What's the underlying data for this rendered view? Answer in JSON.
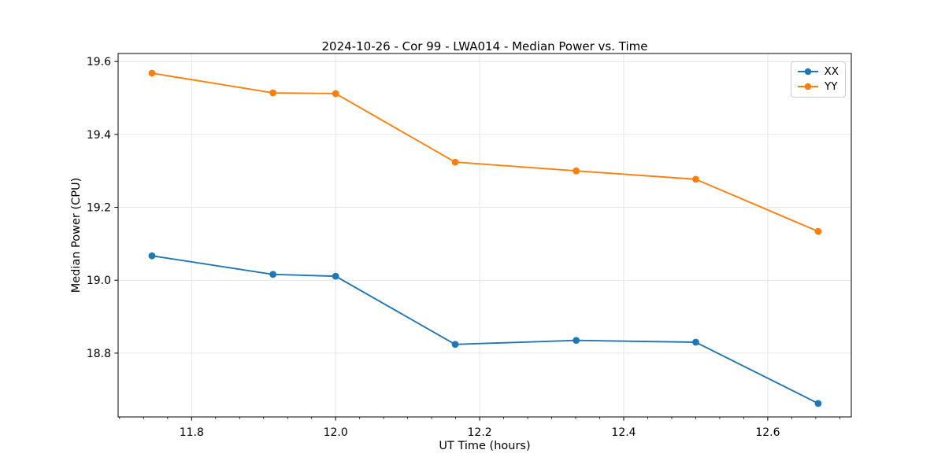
{
  "chart_data": {
    "type": "line",
    "title": "2024-10-26 - Cor 99 - LWA014 - Median Power vs. Time",
    "xlabel": "UT Time (hours)",
    "ylabel": "Median Power (CPU)",
    "x": [
      11.745,
      11.913,
      12.0,
      12.166,
      12.334,
      12.5,
      12.67
    ],
    "series": [
      {
        "name": "XX",
        "color": "#1f77b4",
        "values": [
          19.067,
          19.016,
          19.011,
          18.824,
          18.835,
          18.83,
          18.662
        ]
      },
      {
        "name": "YY",
        "color": "#ff7f0e",
        "values": [
          19.568,
          19.514,
          19.512,
          19.324,
          19.3,
          19.277,
          19.134
        ]
      }
    ],
    "xlim": [
      11.698,
      12.716
    ],
    "ylim": [
      18.625,
      19.622
    ],
    "xticks": [
      11.8,
      12.0,
      12.2,
      12.4,
      12.6
    ],
    "xtick_labels": [
      "11.8",
      "12.0",
      "12.2",
      "12.4",
      "12.6"
    ],
    "yticks": [
      18.8,
      19.0,
      19.2,
      19.4,
      19.6
    ],
    "ytick_labels": [
      "18.8",
      "19.0",
      "19.2",
      "19.4",
      "19.6"
    ],
    "x_minor_step": 0.03333333,
    "grid": true,
    "legend_position": "upper right",
    "marker": "circle",
    "colors": {
      "background": "#ffffff",
      "grid": "#e6e6e6",
      "spine": "#000000",
      "tick": "#000000",
      "text": "#000000"
    }
  }
}
